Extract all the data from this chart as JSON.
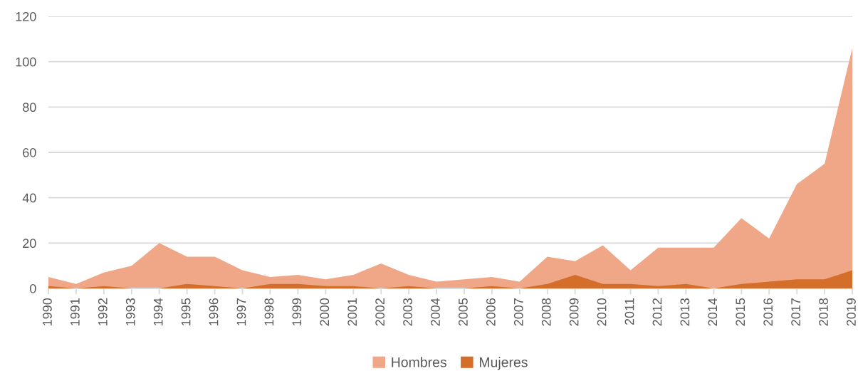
{
  "chart_data": {
    "type": "area",
    "categories": [
      "1990",
      "1991",
      "1992",
      "1993",
      "1994",
      "1995",
      "1996",
      "1997",
      "1998",
      "1999",
      "2000",
      "2001",
      "2002",
      "2003",
      "2004",
      "2005",
      "2006",
      "2007",
      "2008",
      "2009",
      "2010",
      "2011",
      "2012",
      "2013",
      "2014",
      "2015",
      "2016",
      "2017",
      "2018",
      "2019"
    ],
    "series": [
      {
        "name": "Hombres",
        "color": "#f0a788",
        "values": [
          5,
          2,
          7,
          10,
          20,
          14,
          14,
          8,
          5,
          6,
          4,
          6,
          11,
          6,
          3,
          4,
          5,
          3,
          14,
          12,
          19,
          8,
          18,
          18,
          18,
          31,
          22,
          46,
          55,
          106
        ]
      },
      {
        "name": "Mujeres",
        "color": "#d36e2b",
        "values": [
          1,
          0,
          1,
          0,
          0,
          2,
          1,
          0,
          2,
          2,
          1,
          1,
          0,
          1,
          0,
          0,
          1,
          0,
          2,
          6,
          2,
          2,
          1,
          2,
          0,
          2,
          3,
          4,
          4,
          8
        ]
      }
    ],
    "ylim": [
      0,
      120
    ],
    "yticks": [
      0,
      20,
      40,
      60,
      80,
      100,
      120
    ],
    "grid": "y",
    "legend": "bottom"
  }
}
